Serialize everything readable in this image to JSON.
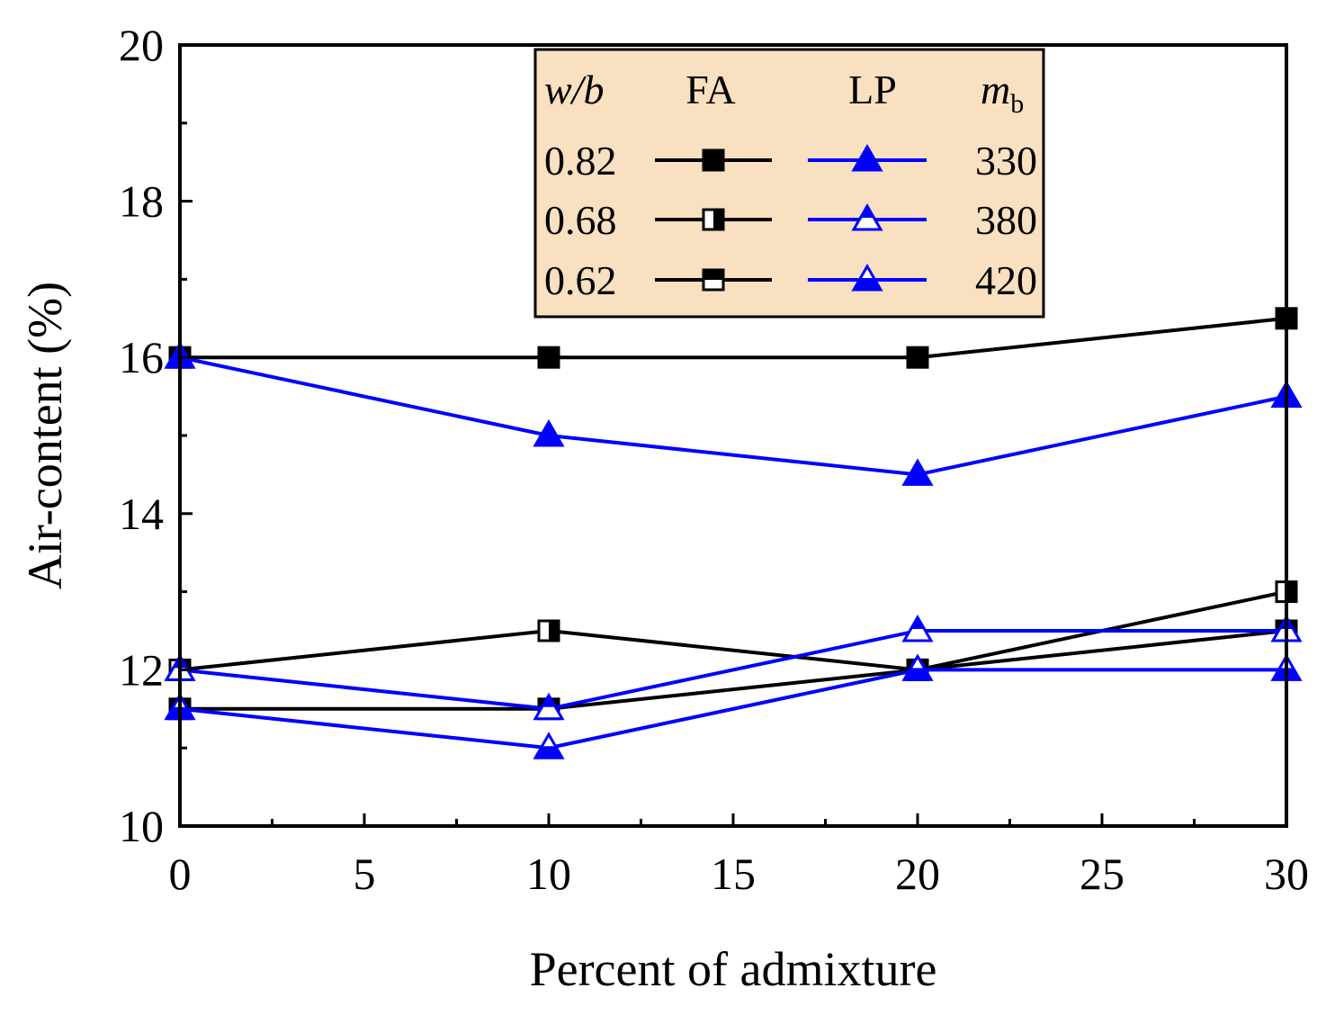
{
  "chart_data": {
    "type": "line",
    "title": "",
    "xlabel": "Percent of admixture",
    "ylabel": "Air-content (%)",
    "xlim": [
      0,
      30
    ],
    "ylim": [
      10,
      20
    ],
    "xticks": [
      0,
      5,
      10,
      15,
      20,
      25,
      30
    ],
    "yticks": [
      10,
      12,
      14,
      16,
      18,
      20
    ],
    "x": [
      0,
      10,
      20,
      30
    ],
    "grid": false,
    "legend_position": "top-center",
    "legend": {
      "headers": {
        "wb_italic": "w/b",
        "fa": "FA",
        "lp": "LP",
        "mb_base": "m",
        "mb_sub": "b"
      },
      "rows": [
        {
          "wb": "0.82",
          "mb": "330",
          "fa_series": "FA 0.82",
          "lp_series": "LP 330"
        },
        {
          "wb": "0.68",
          "mb": "380",
          "fa_series": "FA 0.68",
          "lp_series": "LP 380"
        },
        {
          "wb": "0.62",
          "mb": "420",
          "fa_series": "FA 0.62",
          "lp_series": "LP 420"
        }
      ],
      "background_color": "#F8E0C0"
    },
    "series": [
      {
        "name": "FA 0.82",
        "group": "FA",
        "marker": "square-filled",
        "color": "#000000",
        "values": [
          16.0,
          16.0,
          16.0,
          16.5
        ]
      },
      {
        "name": "FA 0.68",
        "group": "FA",
        "marker": "square-right-half",
        "color": "#000000",
        "values": [
          12.0,
          12.5,
          12.0,
          13.0
        ]
      },
      {
        "name": "FA 0.62",
        "group": "FA",
        "marker": "square-top-half",
        "color": "#000000",
        "values": [
          11.5,
          11.5,
          12.0,
          12.5
        ]
      },
      {
        "name": "LP 330",
        "group": "LP",
        "marker": "triangle-filled",
        "color": "#0000FF",
        "values": [
          16.0,
          15.0,
          14.5,
          15.5
        ]
      },
      {
        "name": "LP 380",
        "group": "LP",
        "marker": "triangle-top-half",
        "color": "#0000FF",
        "values": [
          12.0,
          11.5,
          12.5,
          12.5
        ]
      },
      {
        "name": "LP 420",
        "group": "LP",
        "marker": "triangle-bottom-half",
        "color": "#0000FF",
        "values": [
          11.5,
          11.0,
          12.0,
          12.0
        ]
      }
    ]
  }
}
